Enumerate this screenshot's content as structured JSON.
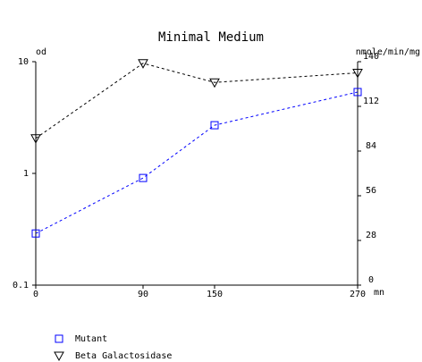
{
  "chart_data": {
    "type": "line",
    "title": "Minimal Medium",
    "xlabel": "mn",
    "ylabel": "od",
    "y2label": "nmole/min/mg",
    "x": [
      0,
      90,
      150,
      270
    ],
    "xlim": [
      0,
      270
    ],
    "xticks": [
      0,
      90,
      150,
      270
    ],
    "ylim": [
      0.1,
      10
    ],
    "yticks": [
      0.1,
      1,
      10
    ],
    "yscale": "log",
    "y2lim": [
      0,
      140
    ],
    "y2ticks": [
      0,
      28,
      56,
      84,
      112,
      140
    ],
    "line_style": "dashed",
    "series": [
      {
        "name": "Mutant",
        "color": "#0000ff",
        "marker": "square",
        "values": [
          0.29,
          0.91,
          2.7,
          5.35
        ]
      },
      {
        "name": "Beta Galactosidase",
        "color": "#000000",
        "marker": "triangle-down",
        "axis": "y2",
        "values": [
          92,
          139,
          127,
          133
        ]
      }
    ]
  }
}
